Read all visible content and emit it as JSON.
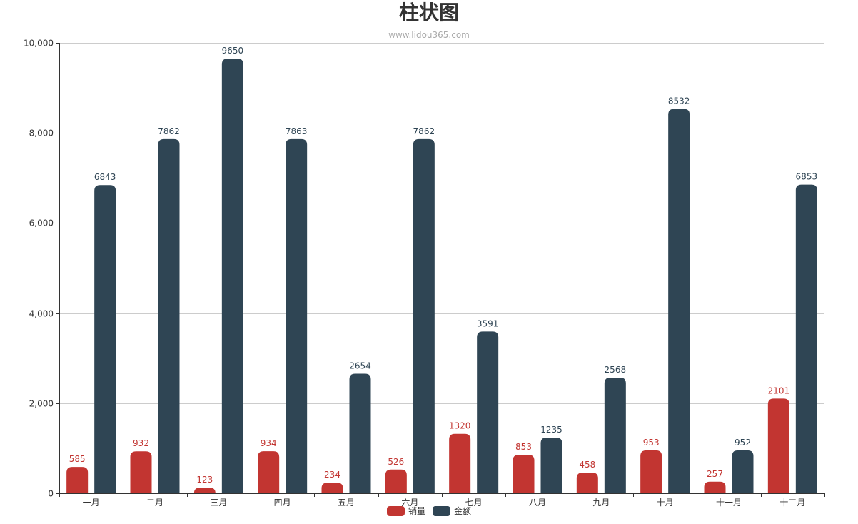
{
  "chart_data": {
    "type": "bar",
    "title": "柱状图",
    "subtitle": "www.lidou365.com",
    "categories": [
      "一月",
      "二月",
      "三月",
      "四月",
      "五月",
      "六月",
      "七月",
      "八月",
      "九月",
      "十月",
      "十一月",
      "十二月"
    ],
    "series": [
      {
        "name": "销量",
        "color": "#c23531",
        "values": [
          585,
          932,
          123,
          934,
          234,
          526,
          1320,
          853,
          458,
          953,
          257,
          2101
        ]
      },
      {
        "name": "金额",
        "color": "#2f4554",
        "values": [
          6843,
          7862,
          9650,
          7863,
          2654,
          7862,
          3591,
          1235,
          2568,
          8532,
          952,
          6853
        ]
      }
    ],
    "ylim": [
      0,
      10000
    ],
    "yticks": [
      0,
      2000,
      4000,
      6000,
      8000,
      10000
    ],
    "ytick_labels": [
      "0",
      "2,000",
      "4,000",
      "6,000",
      "8,000",
      "10,000"
    ],
    "xlabel": "",
    "ylabel": "",
    "grid": true,
    "legend_position": "bottom-center",
    "data_labels": true
  }
}
